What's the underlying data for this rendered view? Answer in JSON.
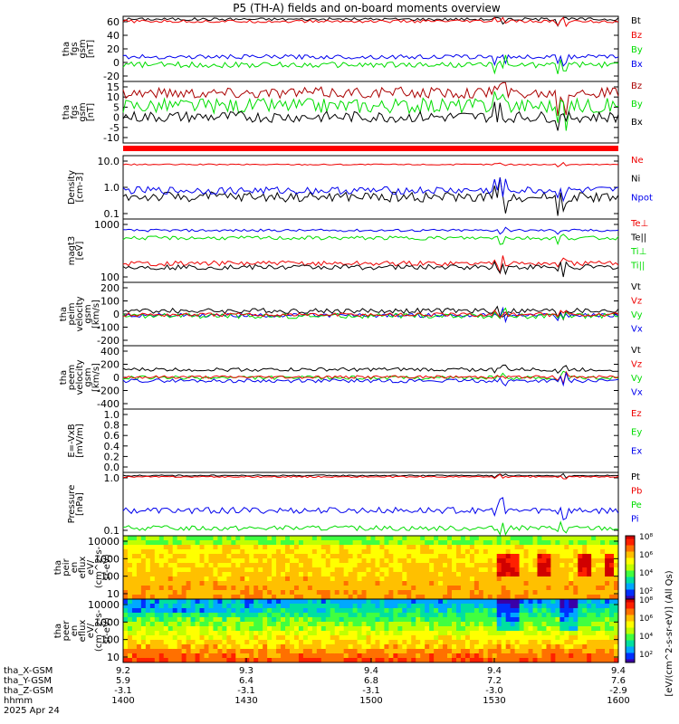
{
  "title": "P5 (TH-A) fields and on-board moments overview",
  "colors": {
    "black": "#000000",
    "red": "#ee0000",
    "green": "#00dd00",
    "blue": "#0000ee",
    "darkred": "#aa0000",
    "axis": "#000000"
  },
  "chart_data": [
    {
      "type": "line",
      "panel": "fgs-gsm-1",
      "ylabel": [
        "tha",
        "fgs",
        "gsm",
        "[nT]"
      ],
      "yticks": [
        "-20",
        "0",
        "20",
        "40",
        "60"
      ],
      "ylim": [
        -25,
        65
      ],
      "legend": [
        {
          "label": "Bt",
          "color": "#000000"
        },
        {
          "label": "Bz",
          "color": "#ee0000"
        },
        {
          "label": "By",
          "color": "#00dd00"
        },
        {
          "label": "Bx",
          "color": "#0000ee"
        }
      ],
      "series": [
        {
          "color": "#000000",
          "level": 61,
          "noise": 2
        },
        {
          "color": "#ee0000",
          "level": 58,
          "noise": 2
        },
        {
          "color": "#0000ee",
          "level": 9,
          "noise": 3
        },
        {
          "color": "#00dd00",
          "level": -2,
          "noise": 4
        }
      ]
    },
    {
      "type": "line",
      "panel": "fgs-gsm-2",
      "ylabel": [
        "tha",
        "fgs",
        "gsm",
        "[nT]"
      ],
      "yticks": [
        "-10",
        "-5",
        "0",
        "5",
        "10",
        "15"
      ],
      "ylim": [
        -16,
        17
      ],
      "legend": [
        {
          "label": "Bz",
          "color": "#aa0000"
        },
        {
          "label": "By",
          "color": "#00dd00"
        },
        {
          "label": "Bx",
          "color": "#000000"
        }
      ],
      "series": [
        {
          "color": "#aa0000",
          "level": 11,
          "noise": 3
        },
        {
          "color": "#00dd00",
          "level": 4,
          "noise": 4
        },
        {
          "color": "#000000",
          "level": -2,
          "noise": 3
        }
      ]
    },
    {
      "type": "line",
      "panel": "density",
      "ylabel": [
        "Density",
        "[cm-3]"
      ],
      "yticks": [
        "0.1",
        "1.0",
        "10.0"
      ],
      "ylog": true,
      "legend": [
        {
          "label": "Ne",
          "color": "#ee0000"
        },
        {
          "label": "Ni",
          "color": "#000000"
        },
        {
          "label": "Npot",
          "color": "#0000ee"
        }
      ],
      "series": [
        {
          "color": "#ee0000",
          "level": 0.86,
          "noise": 0.01
        },
        {
          "color": "#000000",
          "level": 0.35,
          "noise": 0.08
        },
        {
          "color": "#0000ee",
          "level": 0.45,
          "noise": 0.06
        }
      ]
    },
    {
      "type": "line",
      "panel": "temperature",
      "ylabel": [
        "magt3",
        "[eV]"
      ],
      "yticks": [
        "100",
        "1000"
      ],
      "ylog": true,
      "legend": [
        {
          "label": "Te⊥",
          "color": "#ee0000"
        },
        {
          "label": "Te||",
          "color": "#000000"
        },
        {
          "label": "Ti⊥",
          "color": "#00dd00"
        },
        {
          "label": "Ti||",
          "color": "#00dd00"
        }
      ],
      "series": [
        {
          "color": "#0000ee",
          "level": 0.82,
          "noise": 0.02
        },
        {
          "color": "#00dd00",
          "level": 0.7,
          "noise": 0.03
        },
        {
          "color": "#ee0000",
          "level": 0.3,
          "noise": 0.04
        },
        {
          "color": "#000000",
          "level": 0.24,
          "noise": 0.04
        }
      ]
    },
    {
      "type": "line",
      "panel": "peim-velocity",
      "ylabel": [
        "tha",
        "peim",
        "velocity",
        "gsm",
        "[km/s]"
      ],
      "yticks": [
        "-200",
        "-100",
        "0",
        "100",
        "200"
      ],
      "ylim": [
        -230,
        260
      ],
      "legend": [
        {
          "label": "Vt",
          "color": "#000000"
        },
        {
          "label": "Vz",
          "color": "#ee0000"
        },
        {
          "label": "Vy",
          "color": "#00dd00"
        },
        {
          "label": "Vx",
          "color": "#0000ee"
        }
      ],
      "series": [
        {
          "color": "#000000",
          "level": 40,
          "noise": 20
        },
        {
          "color": "#0000ee",
          "level": 5,
          "noise": 15
        },
        {
          "color": "#00dd00",
          "level": 0,
          "noise": 20
        },
        {
          "color": "#ee0000",
          "level": 10,
          "noise": 15
        }
      ]
    },
    {
      "type": "line",
      "panel": "peem-velocity",
      "ylabel": [
        "tha",
        "peem",
        "velocity",
        "gsm",
        "[km/s]"
      ],
      "yticks": [
        "-400",
        "-200",
        "0",
        "200",
        "400"
      ],
      "ylim": [
        -420,
        430
      ],
      "legend": [
        {
          "label": "Vt",
          "color": "#000000"
        },
        {
          "label": "Vz",
          "color": "#ee0000"
        },
        {
          "label": "Vy",
          "color": "#00dd00"
        },
        {
          "label": "Vx",
          "color": "#0000ee"
        }
      ],
      "series": [
        {
          "color": "#000000",
          "level": 110,
          "noise": 25
        },
        {
          "color": "#00dd00",
          "level": 0,
          "noise": 25
        },
        {
          "color": "#ee0000",
          "level": 10,
          "noise": 20
        },
        {
          "color": "#0000ee",
          "level": -40,
          "noise": 25
        }
      ]
    },
    {
      "type": "line",
      "panel": "efield",
      "ylabel": [
        "E=-VxB",
        "[mV/m]"
      ],
      "yticks": [
        "0.0",
        "0.2",
        "0.4",
        "0.6",
        "0.8",
        "1.0"
      ],
      "ylim": [
        0,
        1
      ],
      "legend": [
        {
          "label": "Ez",
          "color": "#ee0000"
        },
        {
          "label": "Ey",
          "color": "#00dd00"
        },
        {
          "label": "Ex",
          "color": "#0000ee"
        }
      ],
      "series": []
    },
    {
      "type": "line",
      "panel": "pressure",
      "ylabel": [
        "Pressure",
        "[nPa]"
      ],
      "yticks": [
        "0.1",
        "1.0"
      ],
      "ylog": true,
      "legend": [
        {
          "label": "Pt",
          "color": "#000000"
        },
        {
          "label": "Pb",
          "color": "#ee0000"
        },
        {
          "label": "Pe",
          "color": "#00dd00"
        },
        {
          "label": "Pi",
          "color": "#0000ee"
        }
      ],
      "series": [
        {
          "color": "#000000",
          "level": 0.95,
          "noise": 0.01
        },
        {
          "color": "#ee0000",
          "level": 0.93,
          "noise": 0.01
        },
        {
          "color": "#0000ee",
          "level": 0.4,
          "noise": 0.05
        },
        {
          "color": "#00dd00",
          "level": 0.12,
          "noise": 0.04
        }
      ]
    },
    {
      "type": "heatmap",
      "panel": "peir-en-eflux",
      "ylabel": [
        "tha",
        "peir",
        "en",
        "eflux",
        "eV/",
        "(cm^2-s-",
        "sr-eV)"
      ],
      "yticks": [
        "10",
        "100",
        "1000",
        "10000"
      ],
      "colorbar_ticks": [
        "10²",
        "10⁴",
        "10⁶",
        "10⁸"
      ]
    },
    {
      "type": "heatmap",
      "panel": "peer-en-eflux",
      "ylabel": [
        "tha",
        "peer",
        "en",
        "eflux",
        "eV/",
        "(cm^2-s-",
        "sr-eV)"
      ],
      "yticks": [
        "10",
        "100",
        "1000",
        "10000"
      ],
      "colorbar_ticks": [
        "10²",
        "10⁴",
        "10⁶",
        "10⁸"
      ]
    }
  ],
  "colorbar_label": "[eV/(cm^2-s-sr-eV)] (All Qs)",
  "top_bar_color": "#ff0000",
  "xaxis": {
    "rows": [
      {
        "label": "tha_X-GSM",
        "values": [
          "9.2",
          "9.3",
          "9.4",
          "9.4",
          "9.4"
        ]
      },
      {
        "label": "tha_Y-GSM",
        "values": [
          "5.9",
          "6.4",
          "6.8",
          "7.2",
          "7.6"
        ]
      },
      {
        "label": "tha_Z-GSM",
        "values": [
          "-3.1",
          "-3.1",
          "-3.1",
          "-3.0",
          "-2.9"
        ]
      },
      {
        "label": "hhmm",
        "values": [
          "1400",
          "1430",
          "1500",
          "1530",
          "1600"
        ]
      }
    ],
    "date": "2025 Apr 24"
  }
}
